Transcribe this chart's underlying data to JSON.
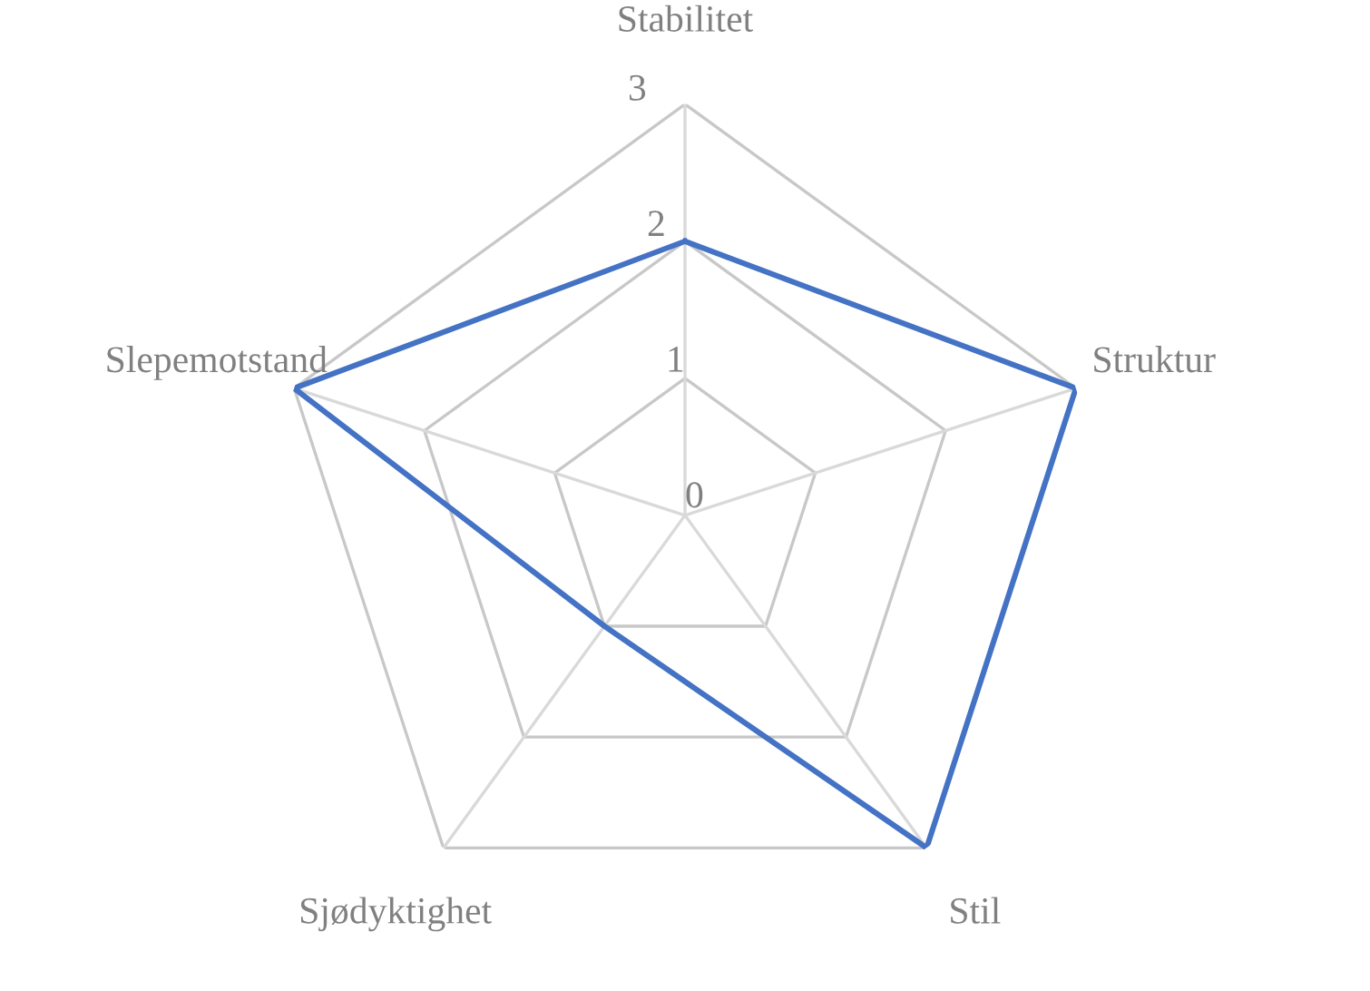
{
  "chart_data": {
    "type": "radar",
    "categories": [
      "Stabilitet",
      "Struktur",
      "Stil",
      "Sjødyktighet",
      "Slepemotstand"
    ],
    "series": [
      {
        "color": "#4472c4",
        "values": [
          2,
          3,
          3,
          1,
          3
        ]
      }
    ],
    "ylim": [
      0,
      3
    ],
    "yticks": [
      0,
      1,
      2,
      3
    ],
    "grid": true,
    "marker": "none",
    "line_style": "solid"
  }
}
